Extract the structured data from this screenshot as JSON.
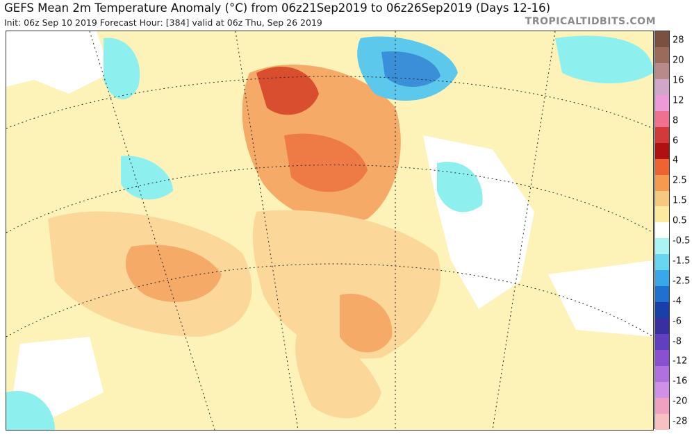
{
  "header": {
    "title": "GEFS Mean 2m Temperature Anomaly (°C) from 06z21Sep2019 to 06z26Sep2019 (Days 12-16)",
    "subtitle": "Init: 06z Sep 10 2019   Forecast Hour: [384]   valid at 06z Thu, Sep 26 2019",
    "brand": "TROPICALTIDBITS.COM"
  },
  "colors": {
    "ocean_neutral": "#ffffff",
    "warm_light": "#fdf3b8",
    "warm_mid": "#fbd89a",
    "warm_orange": "#f6aa68",
    "warm_strong": "#ee7a45",
    "warm_red": "#d94e2f",
    "cool_light": "#8ef0ee",
    "cool_mid": "#5cc8ec",
    "cool_blue": "#3b8fd8"
  },
  "legend": {
    "labels": [
      "28",
      "20",
      "16",
      "12",
      "8",
      "6",
      "4",
      "2.5",
      "1.5",
      "0.5",
      "-0.5",
      "-1.5",
      "-2.5",
      "-4",
      "-6",
      "-8",
      "-12",
      "-16",
      "-20",
      "-28"
    ],
    "swatches": [
      "#7a5040",
      "#9c6a5a",
      "#b98a8a",
      "#d2a6c8",
      "#ee9ad8",
      "#f07090",
      "#d23a3a",
      "#b01010",
      "#ee6430",
      "#f69a50",
      "#f8c880",
      "#fdeaa0",
      "#ffffff",
      "#aaf4f4",
      "#68d6ee",
      "#3aa8e8",
      "#2070d0",
      "#1840a8",
      "#3830a0",
      "#6040c0",
      "#8a50d0",
      "#b070e0",
      "#d090e8",
      "#f0a0c0",
      "#f8c0c0"
    ]
  }
}
